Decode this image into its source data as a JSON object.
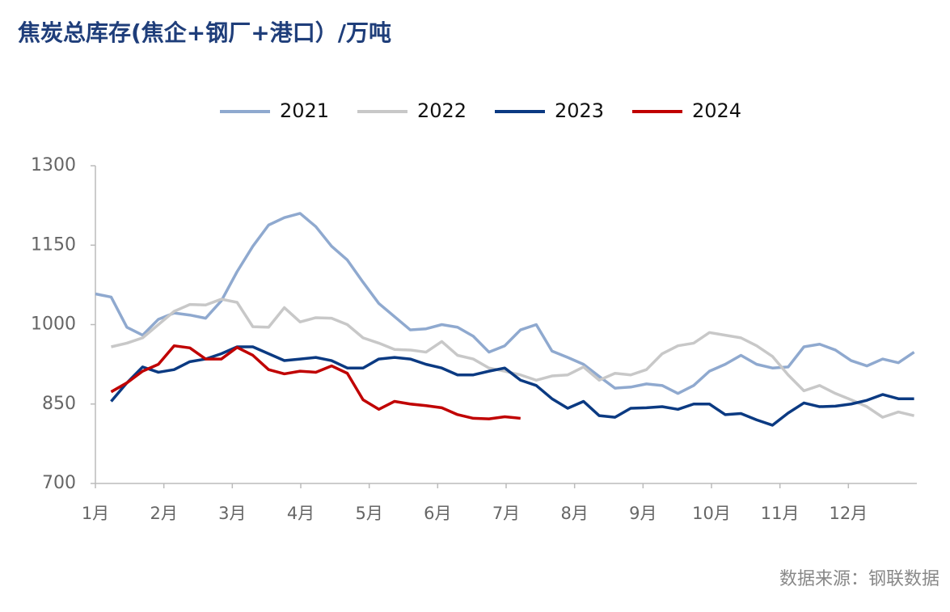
{
  "chart_data": {
    "type": "line",
    "title": "焦炭总库存(焦企+钢厂+港口）/万吨",
    "source": "数据来源：钢联数据",
    "x": [
      1,
      1.23,
      1.46,
      1.69,
      1.92,
      2.15,
      2.38,
      2.61,
      2.84,
      3.07,
      3.3,
      3.53,
      3.76,
      3.99,
      4.22,
      4.45,
      4.68,
      4.91,
      5.14,
      5.37,
      5.6,
      5.83,
      6.06,
      6.29,
      6.52,
      6.75,
      6.98,
      7.21,
      7.44,
      7.67,
      7.9,
      8.13,
      8.36,
      8.59,
      8.82,
      9.05,
      9.28,
      9.51,
      9.74,
      9.97,
      10.2,
      10.43,
      10.66,
      10.89,
      11.12,
      11.35,
      11.58,
      11.81,
      12.04,
      12.27,
      12.5,
      12.73,
      12.96
    ],
    "series": [
      {
        "name": "2021",
        "color": "#8FA9CF",
        "values": [
          1058,
          1052,
          995,
          980,
          1010,
          1022,
          1018,
          1012,
          1045,
          1100,
          1148,
          1188,
          1202,
          1210,
          1185,
          1148,
          1122,
          1080,
          1040,
          1015,
          990,
          992,
          1000,
          995,
          978,
          948,
          960,
          990,
          1000,
          950,
          938,
          925,
          902,
          880,
          882,
          888,
          885,
          870,
          885,
          912,
          925,
          942,
          925,
          918,
          920,
          958,
          963,
          952,
          932,
          922,
          935,
          928,
          948
        ]
      },
      {
        "name": "2022",
        "color": "#C8C8C8",
        "values": [
          null,
          958,
          965,
          975,
          1000,
          1025,
          1038,
          1037,
          1048,
          1042,
          996,
          995,
          1032,
          1005,
          1013,
          1012,
          1000,
          975,
          965,
          953,
          952,
          948,
          968,
          942,
          935,
          918,
          912,
          905,
          895,
          903,
          905,
          920,
          895,
          908,
          905,
          915,
          945,
          960,
          965,
          985,
          980,
          975,
          960,
          940,
          905,
          875,
          885,
          870,
          858,
          845,
          825,
          835,
          828
        ]
      },
      {
        "name": "2023",
        "color": "#0B3A82",
        "values": [
          null,
          855,
          890,
          920,
          910,
          915,
          930,
          935,
          945,
          958,
          958,
          945,
          932,
          935,
          938,
          932,
          918,
          918,
          935,
          938,
          935,
          925,
          918,
          905,
          905,
          912,
          918,
          895,
          885,
          860,
          842,
          855,
          828,
          825,
          842,
          843,
          845,
          840,
          850,
          850,
          830,
          832,
          820,
          810,
          833,
          852,
          845,
          846,
          850,
          857,
          868,
          860,
          860
        ]
      },
      {
        "name": "2024",
        "color": "#C00000",
        "values": [
          null,
          873,
          890,
          912,
          925,
          960,
          956,
          935,
          935,
          957,
          942,
          915,
          907,
          912,
          910,
          922,
          908,
          858,
          840,
          855,
          850,
          847,
          843,
          830,
          823,
          822,
          826,
          823,
          null,
          null,
          null,
          null,
          null,
          null,
          null,
          null,
          null,
          null,
          null,
          null,
          null,
          null,
          null,
          null,
          null,
          null,
          null,
          null,
          null,
          null,
          null,
          null,
          null
        ]
      }
    ],
    "xlim": [
      1,
      13
    ],
    "xticks": [
      {
        "value": 1,
        "label": "1月"
      },
      {
        "value": 2,
        "label": "2月"
      },
      {
        "value": 3,
        "label": "3月"
      },
      {
        "value": 4,
        "label": "4月"
      },
      {
        "value": 5,
        "label": "5月"
      },
      {
        "value": 6,
        "label": "6月"
      },
      {
        "value": 7,
        "label": "7月"
      },
      {
        "value": 8,
        "label": "8月"
      },
      {
        "value": 9,
        "label": "9月"
      },
      {
        "value": 10,
        "label": "10月"
      },
      {
        "value": 11,
        "label": "11月"
      },
      {
        "value": 12,
        "label": "12月"
      }
    ],
    "ylim": [
      700,
      1300
    ],
    "yticks": [
      700,
      850,
      1000,
      1150,
      1300
    ],
    "grid": false,
    "legend": "top"
  }
}
